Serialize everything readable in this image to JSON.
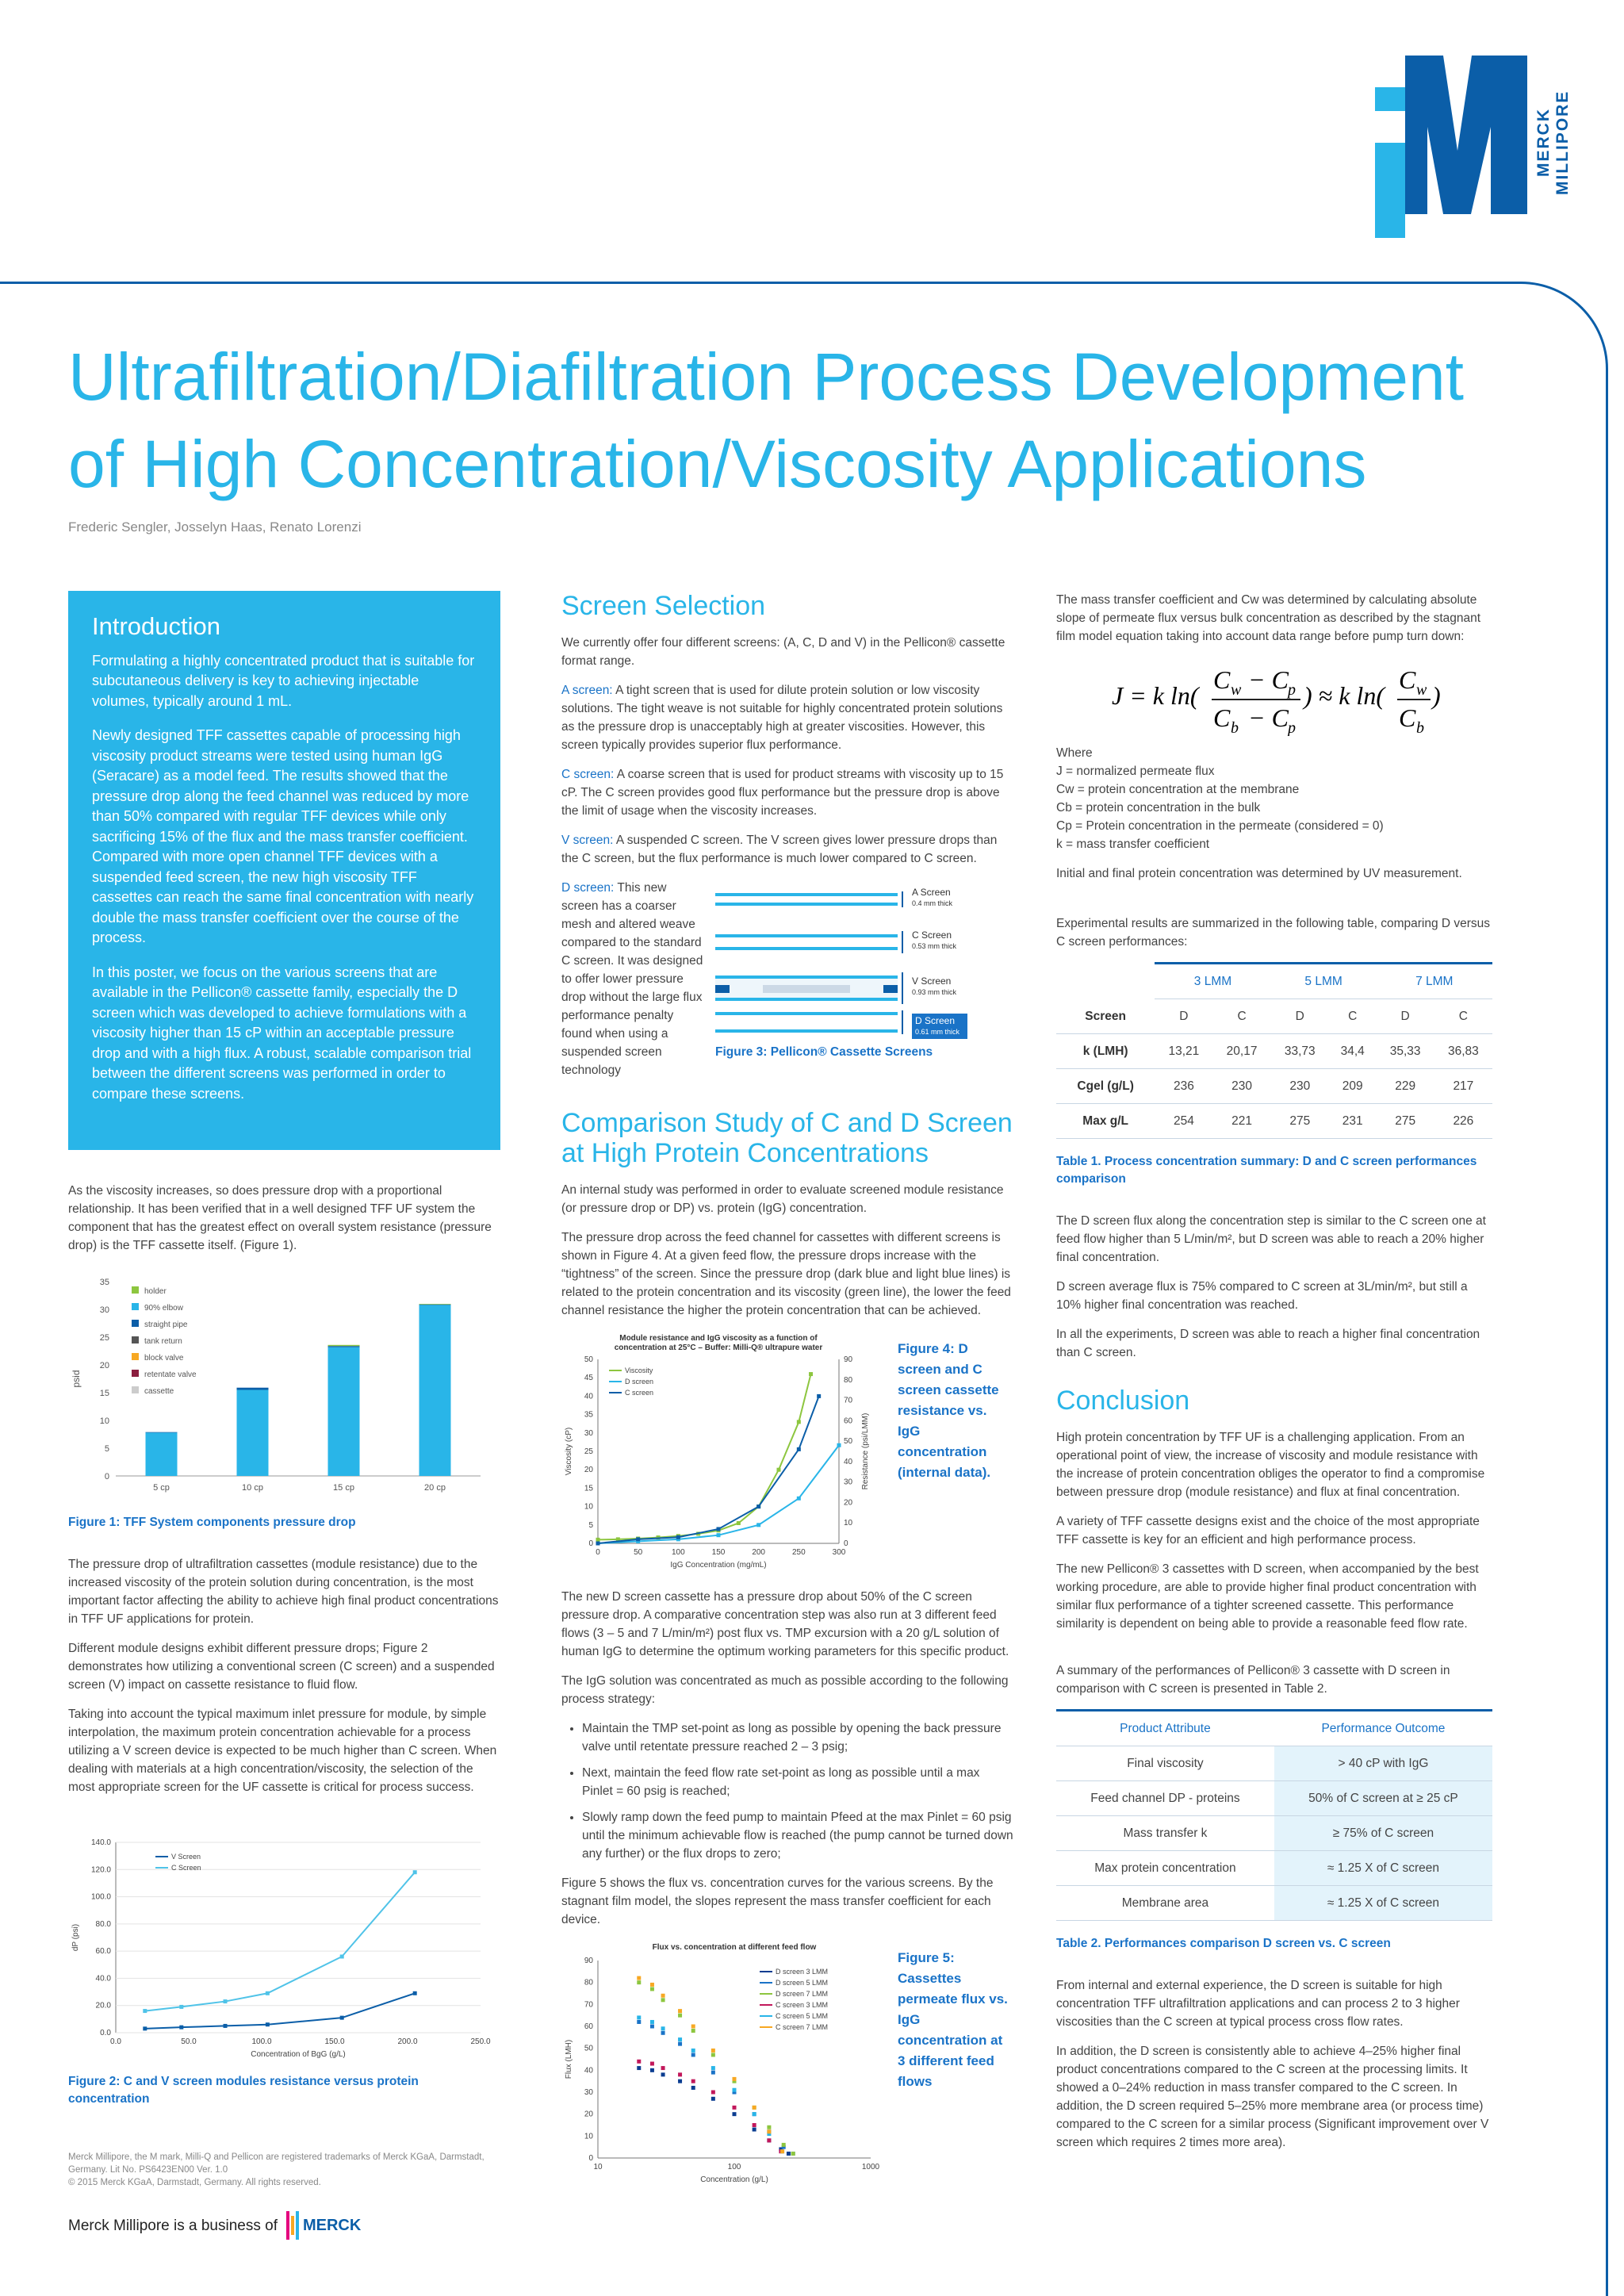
{
  "brand": {
    "logo_text": "MERCK MILLIPORE",
    "footer_business": "Merck Millipore is a business of",
    "footer_merck": "MERCK"
  },
  "title": "Ultrafiltration/Diafiltration Process Development of High Concentration/Viscosity Applications",
  "authors": "Frederic Sengler, Josselyn Haas, Renato Lorenzi",
  "intro": {
    "heading": "Introduction",
    "p1": "Formulating a highly concentrated product that is suitable for subcutaneous delivery is key to achieving injectable volumes, typically around 1 mL.",
    "p2": "Newly designed TFF cassettes capable of processing high viscosity product streams were tested using human IgG (Seracare) as a model feed. The results showed that the pressure drop along the feed channel was reduced by more than 50% compared with regular TFF devices while only sacrificing 15% of the flux and the mass transfer coefficient. Compared with more open channel TFF devices with a suspended feed screen, the new high viscosity TFF cassettes can reach the same final concentration with nearly double the mass transfer coefficient over the course of the process.",
    "p3": "In this poster, we focus on the various screens that are available in the Pellicon® cassette family, especially the D screen which was developed to achieve formulations with a viscosity higher than 15 cP within an acceptable pressure drop and with a high flux. A robust, scalable comparison trial between the different screens was performed in order to compare these screens."
  },
  "col1": {
    "p1": "As the viscosity increases, so does pressure drop with a proportional relationship. It has been verified that in a well designed TFF UF system the component that has the greatest effect on overall system resistance (pressure drop) is the TFF cassette itself. (Figure 1).",
    "fig1_caption": "Figure 1: TFF System components pressure drop",
    "p2": "The pressure drop of ultrafiltration cassettes (module resistance) due to the increased viscosity of the protein solution during concentration, is the most important factor affecting the ability to achieve high final product concentrations in TFF UF applications for protein.",
    "p3": "Different module designs exhibit different pressure drops; Figure 2 demonstrates how utilizing a conventional screen (C screen) and a suspended screen (V) impact on cassette resistance to fluid flow.",
    "p4": "Taking into account the typical maximum inlet pressure for module, by simple interpolation, the maximum protein concentration achievable for a process utilizing a V screen device is expected to be much higher than C screen. When dealing with materials at a high concentration/viscosity, the selection of the most appropriate screen for the UF cassette is critical for process success.",
    "fig2_caption": "Figure 2: C and V screen modules resistance versus protein concentration",
    "legal1": "Merck Millipore, the M mark, Milli-Q and Pellicon are registered trademarks of Merck KGaA, Darmstadt, Germany. Lit No. PS6423EN00  Ver. 1.0",
    "legal2": "© 2015 Merck KGaA, Darmstadt, Germany. All rights reserved."
  },
  "col2": {
    "screen_heading": "Screen Selection",
    "p1": "We currently offer four different screens: (A, C, D and V) in the Pellicon® cassette format range.",
    "a_label": "A screen:",
    "a_text": " A tight screen that is used for dilute protein solution or low viscosity solutions. The tight weave is not suitable for highly concentrated protein solutions as the pressure drop is unacceptably high at greater viscosities. However, this screen typically provides superior flux performance.",
    "c_label": "C screen:",
    "c_text": " A coarse screen that is used for product streams with viscosity up to 15 cP. The C screen provides good flux performance but the pressure drop is above the limit of usage when the viscosity increases.",
    "v_label": "V screen:",
    "v_text": " A suspended C screen. The V screen gives lower pressure drops than the C screen, but the flux performance is much lower compared to C screen.",
    "d_label": "D screen:",
    "d_text": " This new screen has a coarser mesh and altered weave compared to the standard C screen. It was designed to offer lower pressure drop without the large flux performance penalty found when using a suspended screen technology",
    "fig3_caption": "Figure 3: Pellicon® Cassette Screens",
    "screens": [
      {
        "name": "A Screen",
        "thick": "0.4 mm thick"
      },
      {
        "name": "C Screen",
        "thick": "0.53 mm thick"
      },
      {
        "name": "V Screen",
        "thick": "0.93 mm thick"
      },
      {
        "name": "D Screen",
        "thick": "0.61 mm thick"
      }
    ],
    "comp_heading": "Comparison Study of C and D Screen at High Protein Concentrations",
    "p2": "An internal study was performed in order to evaluate screened module resistance (or pressure drop or DP) vs. protein (IgG) concentration.",
    "p3": "The pressure drop across the feed channel for cassettes with different screens is shown in Figure 4. At a given feed flow, the pressure drops increase with the “tightness” of the screen. Since the pressure drop (dark blue and light blue lines) is related to the protein concentration and its viscosity (green line), the lower the feed channel resistance the higher the protein concentration that can be achieved.",
    "fig4_caption": "Figure 4: D screen and C screen cassette resistance vs. IgG concentration (internal data).",
    "p4": "The new D screen cassette has a pressure drop about 50% of the C screen pressure drop. A comparative concentration step was also run at 3 different feed flows (3 – 5 and 7 L/min/m²) post flux vs. TMP excursion with a 20 g/L solution of human IgG to determine the optimum working parameters for this specific product.",
    "p5": "The IgG solution was concentrated as much as possible according to the following process strategy:",
    "bullets": [
      "Maintain the TMP set-point as long as possible by opening the back pressure valve until retentate pressure reached 2 – 3 psig;",
      "Next, maintain the feed flow rate set-point as long as possible until a max Pinlet = 60 psig is reached;",
      "Slowly ramp down the feed pump to maintain Pfeed at the max Pinlet = 60 psig until the minimum achievable flow is reached (the pump cannot be turned down any further) or the flux drops to zero;"
    ],
    "p6": "Figure 5 shows the flux vs. concentration curves for the various screens. By the stagnant film model, the slopes represent the mass transfer coefficient for each device.",
    "fig5_caption": "Figure 5: Cassettes permeate flux vs. IgG concentration at 3 different feed flows"
  },
  "col3": {
    "p1": "The mass transfer coefficient and Cw was determined by calculating absolute slope of permeate flux versus bulk concentration as described by the stagnant film model equation taking into account data range before pump turn down:",
    "where": "Where",
    "defs": [
      "J = normalized permeate flux",
      "Cw = protein concentration at the membrane",
      "Cb = protein concentration in the bulk",
      "Cp = Protein concentration in the permeate (considered = 0)",
      "k = mass transfer coefficient"
    ],
    "p2": "Initial and final protein concentration was determined by UV measurement.",
    "p3": "Experimental results are summarized in the following table, comparing D versus C screen performances:",
    "table1": {
      "groups": [
        "3 LMM",
        "5 LMM",
        "7 LMM"
      ],
      "screen_label": "Screen",
      "screens": [
        "D",
        "C",
        "D",
        "C",
        "D",
        "C"
      ],
      "rows": [
        {
          "label": "k (LMH)",
          "values": [
            "13,21",
            "20,17",
            "33,73",
            "34,4",
            "35,33",
            "36,83"
          ]
        },
        {
          "label": "Cgel (g/L)",
          "values": [
            "236",
            "230",
            "230",
            "209",
            "229",
            "217"
          ]
        },
        {
          "label": "Max g/L",
          "values": [
            "254",
            "221",
            "275",
            "231",
            "275",
            "226"
          ]
        }
      ],
      "caption": "Table 1. Process concentration summary: D and C screen performances comparison"
    },
    "p4": "The D screen flux along the concentration step is similar to the C screen one at feed flow higher than 5 L/min/m², but D screen was able to reach a 20% higher final concentration.",
    "p5": "D screen average flux is 75% compared to C screen at 3L/min/m², but still a 10% higher final concentration was reached.",
    "p6": "In all the experiments, D screen was able to reach a higher final concentration than C screen.",
    "conclusion_heading": "Conclusion",
    "p7": "High protein concentration by TFF UF is a challenging application. From an operational point of view, the increase of viscosity and module resistance with the increase of protein concentration obliges the operator to find a compromise between pressure drop (module resistance) and flux at final concentration.",
    "p8": "A variety of TFF cassette designs exist and the choice of the most appropriate TFF cassette is key for an efficient and high performance process.",
    "p9": "The new Pellicon® 3 cassettes with D screen, when accompanied by the best working procedure, are able to provide higher final product concentration with similar flux performance of a tighter screened cassette. This performance similarity is dependent on being able to provide a reasonable feed flow rate.",
    "p10": "A summary of the performances of Pellicon® 3 cassette with D screen in comparison with C screen is presented in Table 2.",
    "table2": {
      "h1": "Product Attribute",
      "h2": "Performance Outcome",
      "rows": [
        [
          "Final viscosity",
          "> 40 cP with IgG"
        ],
        [
          "Feed channel DP - proteins",
          "50% of C screen at ≥ 25 cP"
        ],
        [
          "Mass transfer k",
          "≥ 75% of C screen"
        ],
        [
          "Max protein concentration",
          "≈ 1.25 X of C screen"
        ],
        [
          "Membrane area",
          "≈ 1.25 X of C screen"
        ]
      ],
      "caption": "Table 2. Performances comparison D screen vs. C screen"
    },
    "p11": "From internal and external experience, the D screen is suitable for high concentration TFF ultrafiltration applications and can process 2 to 3 higher viscosities than the C screen at typical process cross flow rates.",
    "p12": "In addition, the D screen is consistently able to achieve 4–25% higher final product concentrations compared to the C screen at the processing limits. It showed a 0–24% reduction in mass transfer compared to the C screen. In addition, the D screen required 5–25% more membrane area (or process time) compared to the C screen for a similar process (Significant improvement over V screen which requires 2 times more area)."
  },
  "chart_data": [
    {
      "id": "fig1",
      "type": "bar",
      "stacked": true,
      "categories": [
        "5 cp",
        "10 cp",
        "15 cp",
        "20 cp"
      ],
      "ylabel": "psid",
      "ylim": [
        0,
        35
      ],
      "yticks": [
        0,
        5,
        10,
        15,
        20,
        25,
        30,
        35
      ],
      "legend": [
        "holder",
        "90% elbow",
        "straight pipe",
        "tank return",
        "block valve",
        "retentate valve",
        "cassette"
      ],
      "legend_colors": [
        "#8dc63f",
        "#29b5e8",
        "#0b5ea8",
        "#555555",
        "#f7a823",
        "#8b1e3f",
        "#cccccc"
      ],
      "series": [
        {
          "name": "cassette",
          "color": "#29b5e8",
          "values": [
            7.8,
            15.5,
            23.2,
            30.8
          ]
        },
        {
          "name": "straight pipe",
          "color": "#0b5ea8",
          "values": [
            0.1,
            0.4,
            0.2,
            0.1
          ]
        },
        {
          "name": "holder",
          "color": "#8dc63f",
          "values": [
            0,
            0,
            0.2,
            0.1
          ]
        }
      ]
    },
    {
      "id": "fig2",
      "type": "line",
      "xlabel": "Concentration of BgG (g/L)",
      "ylabel": "dP (psi)",
      "xlim": [
        0,
        250
      ],
      "ylim": [
        0,
        140
      ],
      "xticks": [
        0,
        50,
        100,
        150,
        200,
        250
      ],
      "xtick_labels": [
        "0.0",
        "50.0",
        "100.0",
        "150.0",
        "200.0",
        "250.0"
      ],
      "yticks": [
        0,
        20,
        40,
        60,
        80,
        100,
        120,
        140
      ],
      "ytick_labels": [
        "0.0",
        "20.0",
        "40.0",
        "60.0",
        "80.0",
        "100.0",
        "120.0",
        "140.0"
      ],
      "series": [
        {
          "name": "V Screen",
          "color": "#0b5ea8",
          "x": [
            20,
            45,
            75,
            104,
            155,
            205
          ],
          "y": [
            3,
            4,
            5,
            6,
            11,
            29
          ]
        },
        {
          "name": "C Screen",
          "color": "#4fc3e8",
          "x": [
            20,
            45,
            75,
            104,
            155,
            205
          ],
          "y": [
            16,
            19,
            23,
            29,
            56,
            118
          ]
        }
      ]
    },
    {
      "id": "fig4",
      "type": "line",
      "title": "Module resistance and IgG viscosity as a function of concentration at 25°C – Buffer: Milli-Q® ultrapure water",
      "xlabel": "IgG Concentration (mg/mL)",
      "ylabel_left": "Viscosity (cP)",
      "ylabel_right": "Resistance (psi/LMM)",
      "xlim": [
        0,
        300
      ],
      "ylim_left": [
        0,
        50
      ],
      "ylim_right": [
        0,
        90
      ],
      "xticks": [
        0,
        50,
        100,
        150,
        200,
        250,
        300
      ],
      "yticks_left": [
        0,
        5,
        10,
        15,
        20,
        25,
        30,
        35,
        40,
        45,
        50
      ],
      "yticks_right": [
        0,
        10,
        20,
        30,
        40,
        50,
        60,
        70,
        80,
        90
      ],
      "series": [
        {
          "name": "Viscosity",
          "color": "#8dc63f",
          "axis": "left",
          "x": [
            0,
            25,
            50,
            75,
            100,
            125,
            150,
            175,
            200,
            225,
            250,
            265
          ],
          "y": [
            1,
            1.1,
            1.3,
            1.6,
            2,
            2.6,
            3.5,
            5.5,
            10,
            20,
            33,
            46
          ]
        },
        {
          "name": "D screen",
          "color": "#29b5e8",
          "axis": "right",
          "x": [
            0,
            50,
            100,
            150,
            200,
            250,
            300
          ],
          "y": [
            0,
            1,
            2,
            4,
            9,
            22,
            48
          ]
        },
        {
          "name": "C screen",
          "color": "#0b5ea8",
          "axis": "right",
          "x": [
            0,
            50,
            100,
            150,
            200,
            250,
            275
          ],
          "y": [
            0,
            2,
            3,
            7,
            18,
            46,
            72
          ]
        }
      ]
    },
    {
      "id": "fig5",
      "type": "scatter",
      "title": "Flux vs. concentration at different feed flow",
      "xlabel": "Concentration (g/L)",
      "ylabel": "Flux (LMH)",
      "xscale": "log",
      "xlim": [
        10,
        1000
      ],
      "ylim": [
        0,
        90
      ],
      "xticks": [
        10,
        100,
        1000
      ],
      "yticks": [
        0,
        10,
        20,
        30,
        40,
        50,
        60,
        70,
        80,
        90
      ],
      "series": [
        {
          "name": "D screen 3 LMM",
          "color": "#0b3d91",
          "x": [
            20,
            25,
            30,
            40,
            50,
            70,
            100,
            140,
            180,
            220,
            250
          ],
          "y": [
            41,
            40,
            38,
            35,
            32,
            27,
            20,
            13,
            8,
            4,
            2
          ]
        },
        {
          "name": "D screen 5 LMM",
          "color": "#1a73c7",
          "x": [
            20,
            25,
            30,
            40,
            50,
            70,
            100,
            140,
            180,
            230,
            270
          ],
          "y": [
            62,
            60,
            57,
            52,
            47,
            39,
            30,
            20,
            12,
            5,
            2
          ]
        },
        {
          "name": "D screen 7 LMM",
          "color": "#8dc63f",
          "x": [
            20,
            25,
            30,
            40,
            50,
            70,
            100,
            140,
            180,
            230,
            270
          ],
          "y": [
            80,
            77,
            72,
            65,
            58,
            47,
            35,
            23,
            14,
            6,
            2
          ]
        },
        {
          "name": "C screen 3 LMM",
          "color": "#c2185b",
          "x": [
            20,
            25,
            30,
            40,
            50,
            70,
            100,
            140,
            180,
            220
          ],
          "y": [
            44,
            43,
            41,
            38,
            35,
            30,
            23,
            15,
            8,
            3
          ]
        },
        {
          "name": "C screen 5 LMM",
          "color": "#29b5e8",
          "x": [
            20,
            25,
            30,
            40,
            50,
            70,
            100,
            140,
            180,
            225
          ],
          "y": [
            64,
            62,
            59,
            54,
            49,
            41,
            31,
            20,
            11,
            3
          ]
        },
        {
          "name": "C screen 7 LMM",
          "color": "#f7a823",
          "x": [
            20,
            25,
            30,
            40,
            50,
            70,
            100,
            140,
            180,
            225
          ],
          "y": [
            82,
            79,
            74,
            67,
            60,
            49,
            36,
            23,
            12,
            3
          ]
        }
      ]
    }
  ]
}
